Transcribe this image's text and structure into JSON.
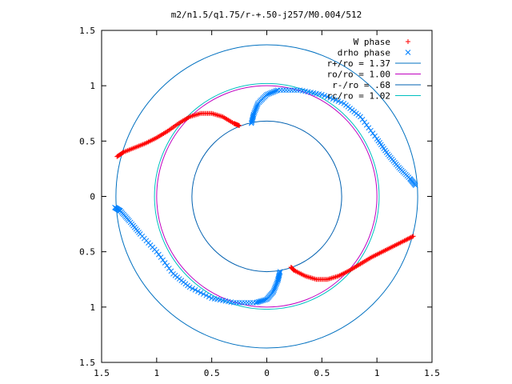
{
  "chart_data": {
    "type": "scatter",
    "title": "m2/n1.5/q1.75/r-+.50-j257/M0.004/512",
    "xlabel": "",
    "ylabel": "",
    "xlim": [
      -1.5,
      1.5
    ],
    "ylim": [
      -1.5,
      1.5
    ],
    "x_tick_values": [
      -1.5,
      -1,
      -0.5,
      0,
      0.5,
      1,
      1.5
    ],
    "x_tick_labels": [
      "1.5",
      "1",
      "0.5",
      "0",
      "0.5",
      "1",
      "1.5"
    ],
    "y_tick_values": [
      1.5,
      1,
      0.5,
      0,
      -0.5,
      -1,
      -1.5
    ],
    "y_tick_labels": [
      "1.5",
      "1",
      "0.5",
      "0",
      "0.5",
      "1",
      "1.5"
    ],
    "grid": false,
    "legend_position": "top-right",
    "series": [
      {
        "name": "W phase",
        "marker": "plus",
        "color": "#ff0000",
        "arms": [
          {
            "x": [
              -1.36,
              -1.3,
              -1.2,
              -1.1,
              -1.0,
              -0.9,
              -0.8,
              -0.7,
              -0.6,
              -0.5,
              -0.4,
              -0.3,
              -0.25
            ],
            "y": [
              0.36,
              0.4,
              0.44,
              0.48,
              0.53,
              0.59,
              0.66,
              0.72,
              0.75,
              0.75,
              0.72,
              0.66,
              0.64
            ]
          },
          {
            "x": [
              1.33,
              1.25,
              1.15,
              1.05,
              0.95,
              0.85,
              0.75,
              0.65,
              0.55,
              0.45,
              0.35,
              0.25,
              0.22
            ],
            "y": [
              -0.36,
              -0.4,
              -0.45,
              -0.5,
              -0.55,
              -0.61,
              -0.67,
              -0.72,
              -0.75,
              -0.75,
              -0.72,
              -0.67,
              -0.64
            ]
          }
        ]
      },
      {
        "name": "drho phase",
        "marker": "cross",
        "color": "#0080ff",
        "arms": [
          {
            "x": [
              -0.14,
              -0.12,
              -0.08,
              0.0,
              0.1,
              0.3,
              0.5,
              0.7,
              0.85,
              1.0,
              1.1,
              1.2,
              1.3,
              1.35
            ],
            "y": [
              0.66,
              0.74,
              0.84,
              0.92,
              0.96,
              0.96,
              0.92,
              0.84,
              0.72,
              0.52,
              0.38,
              0.26,
              0.16,
              0.1
            ]
          },
          {
            "x": [
              0.12,
              0.1,
              0.06,
              0.0,
              -0.1,
              -0.3,
              -0.5,
              -0.7,
              -0.85,
              -1.0,
              -1.15,
              -1.25,
              -1.33,
              -1.38
            ],
            "y": [
              -0.68,
              -0.76,
              -0.86,
              -0.93,
              -0.96,
              -0.96,
              -0.92,
              -0.82,
              -0.7,
              -0.5,
              -0.34,
              -0.22,
              -0.13,
              -0.1
            ]
          }
        ]
      },
      {
        "name": "r+/ro = 1.37",
        "type": "circle",
        "radius": 1.37,
        "color": "#0070c0"
      },
      {
        "name": "ro/ro = 1.00",
        "type": "circle",
        "radius": 1.0,
        "color": "#c000c0"
      },
      {
        "name": "r-/ro = .68",
        "type": "circle",
        "radius": 0.68,
        "color": "#0060b0"
      },
      {
        "name": "rc/ro = 1.02",
        "type": "circle",
        "radius": 1.02,
        "color": "#00c0c0"
      }
    ]
  }
}
